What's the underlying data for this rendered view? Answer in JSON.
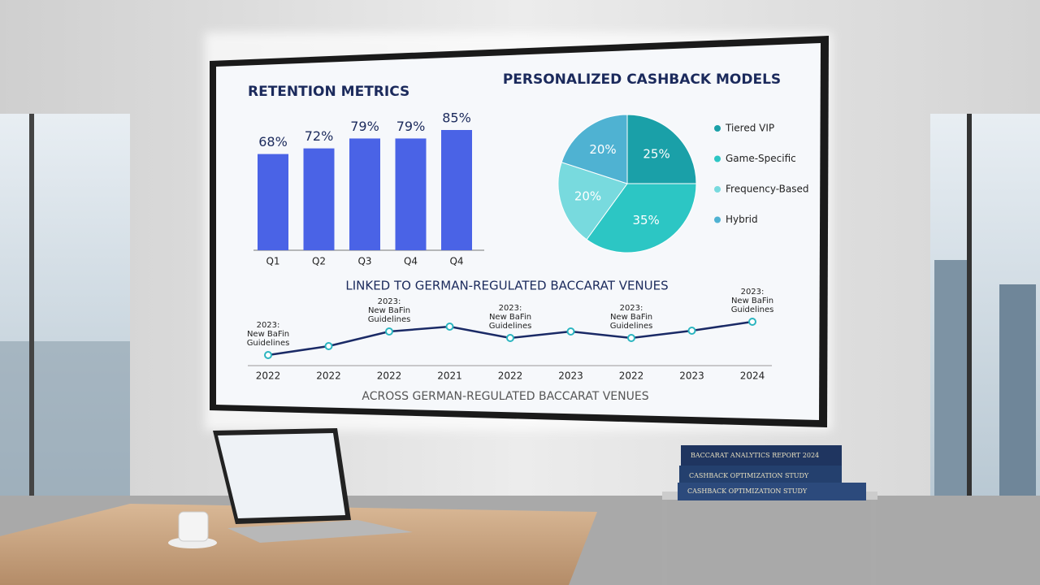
{
  "chart_data": [
    {
      "type": "bar",
      "title": "RETENTION METRICS",
      "categories": [
        "Q1",
        "Q2",
        "Q3",
        "Q4",
        "Q4"
      ],
      "values": [
        68,
        72,
        79,
        79,
        85
      ],
      "value_labels": [
        "68%",
        "72%",
        "79%",
        "79%",
        "85%"
      ],
      "color": "#4a63e6"
    },
    {
      "type": "pie",
      "title": "PERSONALIZED CASHBACK MODELS",
      "categories": [
        "Tiered VIP",
        "Game-Specific",
        "Frequency-Based",
        "Hybrid"
      ],
      "values": [
        25,
        35,
        20,
        20
      ],
      "value_labels": [
        "25%",
        "35%",
        "20%",
        "20%"
      ],
      "colors": [
        "#1aa0a8",
        "#2cc6c4",
        "#78dade",
        "#4fb2d2"
      ]
    },
    {
      "type": "line",
      "title": "LINKED TO GERMAN-REGULATED BACCARAT VENUES",
      "subtitle": "ACROSS GERMAN-REGULATED BACCARAT VENUES",
      "categories": [
        "2022",
        "2022",
        "2022",
        "2021",
        "2022",
        "2023",
        "2022",
        "2023",
        "2024"
      ],
      "values": [
        13,
        24,
        42,
        48,
        34,
        42,
        34,
        43,
        54
      ],
      "annotations": [
        "2023:\nNew BaFin\nGuidelines",
        null,
        "2023:\nNew BaFin\nGuidelines",
        null,
        "2023:\nNew BaFin\nGuidelines",
        null,
        "2023:\nNew BaFin\nGuidelines",
        null,
        "2023:\nNew BaFin\nGuidelines"
      ],
      "color": "#1a2a66",
      "marker_color": "#2bb5c0"
    }
  ],
  "scene": {
    "books": [
      "BACCARAT ANALYTICS REPORT 2024",
      "CASHBACK OPTIMIZATION STUDY",
      "CASHBACK OPTIMIZATION STUDY"
    ]
  }
}
